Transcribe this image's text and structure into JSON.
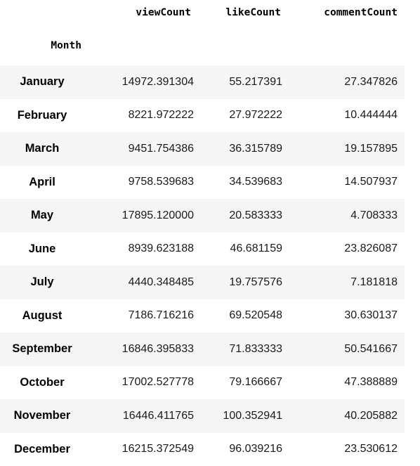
{
  "table": {
    "index_name": "Month",
    "columns": [
      "viewCount",
      "likeCount",
      "commentCount"
    ],
    "rows": [
      {
        "month": "January",
        "viewCount": "14972.391304",
        "likeCount": "55.217391",
        "commentCount": "27.347826"
      },
      {
        "month": "February",
        "viewCount": "8221.972222",
        "likeCount": "27.972222",
        "commentCount": "10.444444"
      },
      {
        "month": "March",
        "viewCount": "9451.754386",
        "likeCount": "36.315789",
        "commentCount": "19.157895"
      },
      {
        "month": "April",
        "viewCount": "9758.539683",
        "likeCount": "34.539683",
        "commentCount": "14.507937"
      },
      {
        "month": "May",
        "viewCount": "17895.120000",
        "likeCount": "20.583333",
        "commentCount": "4.708333"
      },
      {
        "month": "June",
        "viewCount": "8939.623188",
        "likeCount": "46.681159",
        "commentCount": "23.826087"
      },
      {
        "month": "July",
        "viewCount": "4440.348485",
        "likeCount": "19.757576",
        "commentCount": "7.181818"
      },
      {
        "month": "August",
        "viewCount": "7186.716216",
        "likeCount": "69.520548",
        "commentCount": "30.630137"
      },
      {
        "month": "September",
        "viewCount": "16846.395833",
        "likeCount": "71.833333",
        "commentCount": "50.541667"
      },
      {
        "month": "October",
        "viewCount": "17002.527778",
        "likeCount": "79.166667",
        "commentCount": "47.388889"
      },
      {
        "month": "November",
        "viewCount": "16446.411765",
        "likeCount": "100.352941",
        "commentCount": "40.205882"
      },
      {
        "month": "December",
        "viewCount": "16215.372549",
        "likeCount": "96.039216",
        "commentCount": "23.530612"
      }
    ]
  },
  "colors": {
    "stripe": "#f5f5f5",
    "background": "#ffffff"
  }
}
